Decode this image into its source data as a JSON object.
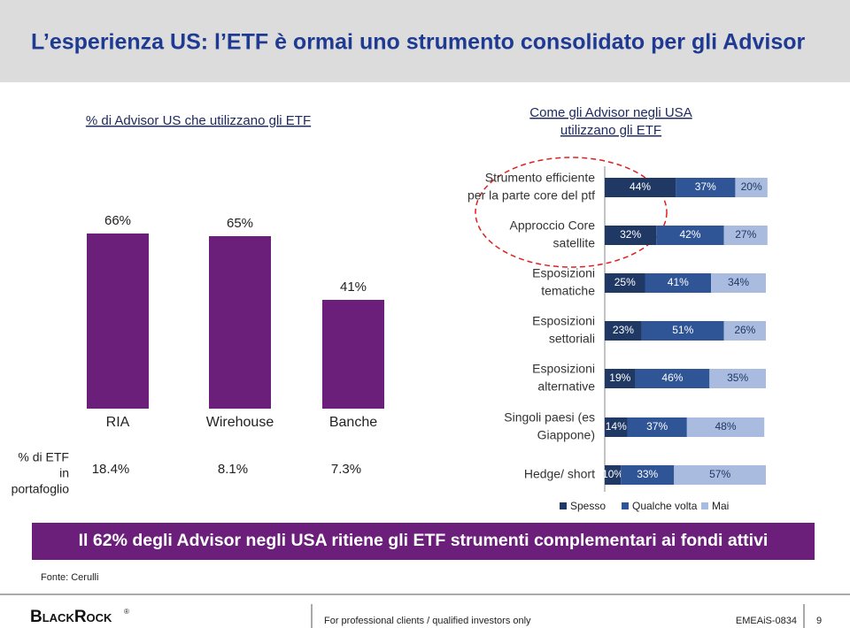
{
  "header": {
    "title": "L’esperienza US: l’ETF è ormai uno strumento consolidato per gli Advisor"
  },
  "chart_data": [
    {
      "type": "bar",
      "title": "% di Advisor US che utilizzano gli ETF",
      "categories": [
        "RIA",
        "Wirehouse",
        "Banche"
      ],
      "values": [
        66,
        65,
        41
      ],
      "value_labels": [
        "66%",
        "65%",
        "41%"
      ],
      "color": "#6b1f7b"
    },
    {
      "type": "hbar",
      "stacked": true,
      "title": [
        "Come gli Advisor negli USA",
        "utilizzano gli ETF"
      ],
      "categories": [
        [
          "Strumento efficiente",
          "per la parte core del ptf"
        ],
        [
          "Approccio Core",
          "satellite"
        ],
        [
          "Esposizioni",
          "tematiche"
        ],
        [
          "Esposizioni",
          "settoriali"
        ],
        [
          "Esposizioni",
          "alternative"
        ],
        [
          "Singoli paesi (es",
          "Giappone)"
        ],
        [
          "Hedge/ short"
        ]
      ],
      "series": [
        {
          "name": "Spesso",
          "color": "#1f3864",
          "values": [
            44,
            32,
            25,
            23,
            19,
            14,
            10
          ],
          "value_labels": [
            "44%",
            "32%",
            "25%",
            "23%",
            "19%",
            "14%",
            "10%"
          ]
        },
        {
          "name": "Qualche volta",
          "color": "#2f5597",
          "values": [
            37,
            42,
            41,
            51,
            46,
            37,
            33
          ],
          "value_labels": [
            "37%",
            "42%",
            "41%",
            "51%",
            "46%",
            "37%",
            "33%"
          ]
        },
        {
          "name": "Mai",
          "color": "#a9bbdf",
          "values": [
            20,
            27,
            34,
            26,
            35,
            48,
            57
          ],
          "value_labels": [
            "20%",
            "27%",
            "34%",
            "26%",
            "35%",
            "48%",
            "57%"
          ]
        }
      ]
    }
  ],
  "portfolio_row": {
    "label": [
      "% di ETF",
      "in",
      "portafoglio"
    ],
    "values": [
      "18.4%",
      "8.1%",
      "7.3%"
    ]
  },
  "banner": "Il 62% degli Advisor negli USA ritiene gli ETF strumenti complementari ai fondi attivi",
  "source": "Fonte: Cerulli",
  "footer": {
    "logo": "BlackRock",
    "logo_mark": "®",
    "disclaimer": "For professional clients / qualified investors only",
    "code": "EMEAiS-0834",
    "page": "9"
  }
}
